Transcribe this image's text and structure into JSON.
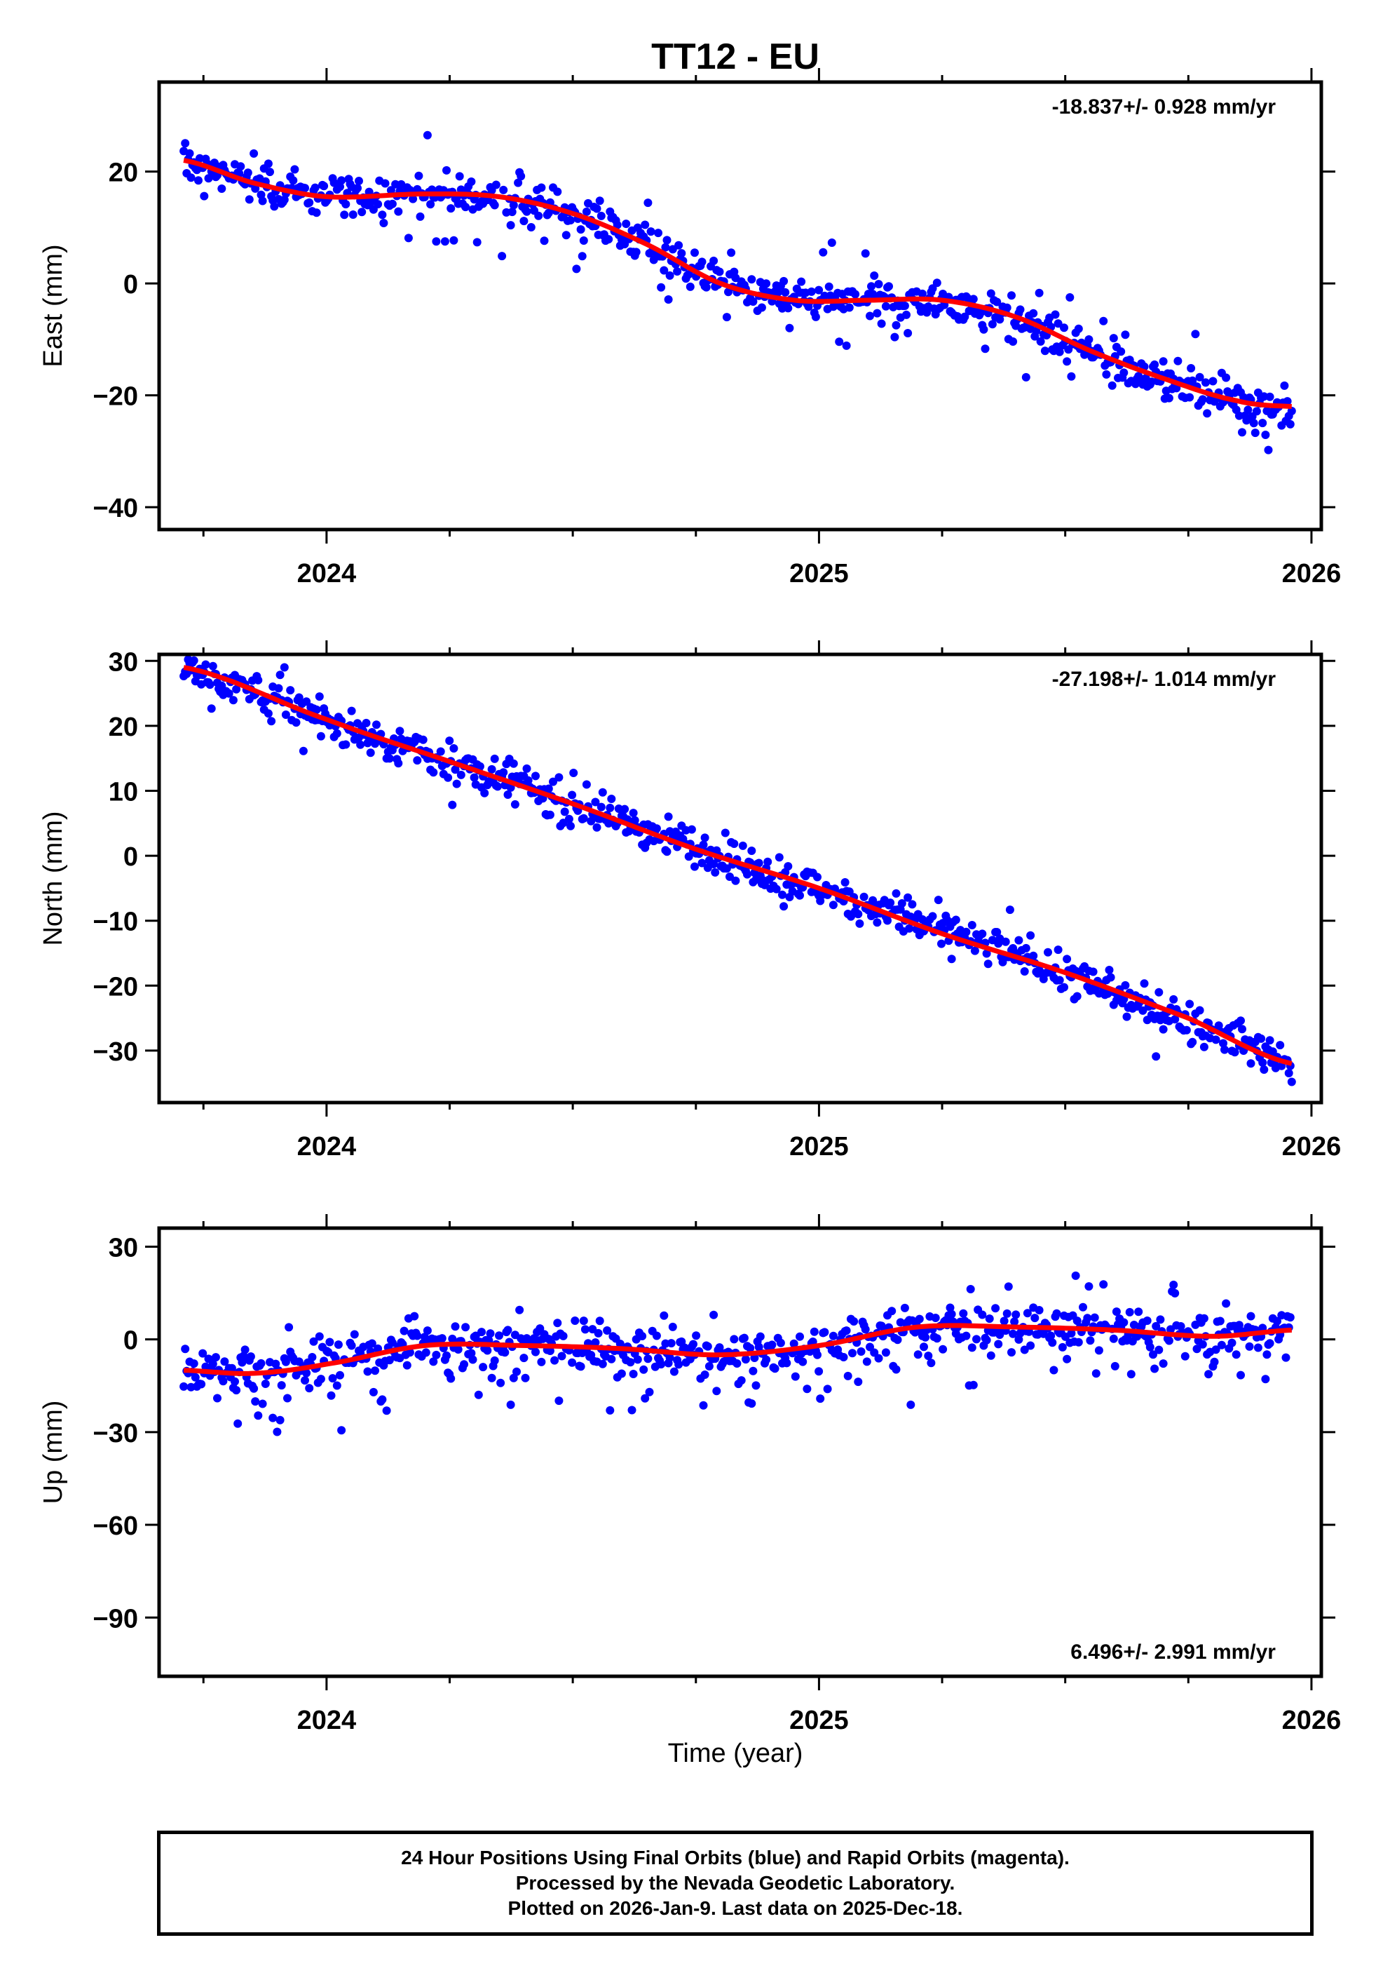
{
  "title": "TT12 - EU",
  "colors": {
    "points": "#0000ff",
    "fit": "#ff0000",
    "frame": "#000000"
  },
  "x_axis": {
    "label": "Time (year)",
    "ticks": [
      2024,
      2025,
      2026
    ],
    "range": [
      2023.66,
      2026.02
    ]
  },
  "caption": {
    "line1": "24 Hour Positions Using Final Orbits (blue) and Rapid Orbits (magenta).",
    "line2": "Processed by the Nevada Geodetic Laboratory.",
    "line3": "Plotted on 2026-Jan-9. Last data on 2025-Dec-18."
  },
  "chart_data": [
    {
      "type": "scatter",
      "title": "",
      "ylabel": "East (mm)",
      "ylim": [
        -44,
        36
      ],
      "yticks": [
        20,
        0,
        -20,
        -40
      ],
      "ytick_labels": [
        "20",
        "0",
        "−20",
        "−40"
      ],
      "velocity_label": "-18.837+/- 0.928 mm/yr",
      "series": [
        {
          "name": "daily positions",
          "x_range": [
            2023.71,
            2025.96
          ],
          "trend_knots": {
            "x": [
              2023.71,
              2023.85,
              2024.0,
              2024.2,
              2024.35,
              2024.5,
              2024.65,
              2024.8,
              2024.95,
              2025.1,
              2025.25,
              2025.4,
              2025.55,
              2025.7,
              2025.85,
              2025.96
            ],
            "y": [
              22,
              18,
              15.5,
              16,
              15.5,
              12.5,
              7,
              0,
              -3,
              -3,
              -3,
              -6,
              -12,
              -17,
              -21,
              -22
            ]
          }
        },
        {
          "name": "fit",
          "x": [
            2023.71,
            2023.85,
            2024.0,
            2024.2,
            2024.35,
            2024.5,
            2024.65,
            2024.8,
            2024.95,
            2025.1,
            2025.25,
            2025.4,
            2025.55,
            2025.7,
            2025.85,
            2025.96
          ],
          "y": [
            22,
            18,
            15.5,
            16,
            15.5,
            12.5,
            7,
            0,
            -3,
            -3,
            -3,
            -6,
            -12,
            -17,
            -21,
            -22
          ]
        }
      ]
    },
    {
      "type": "scatter",
      "title": "",
      "ylabel": "North (mm)",
      "ylim": [
        -38,
        31
      ],
      "yticks": [
        30,
        20,
        10,
        0,
        -10,
        -20,
        -30
      ],
      "ytick_labels": [
        "30",
        "20",
        "10",
        "0",
        "−10",
        "−20",
        "−30"
      ],
      "velocity_label": "-27.198+/- 1.014 mm/yr",
      "series": [
        {
          "name": "daily positions",
          "x_range": [
            2023.71,
            2025.96
          ],
          "trend_knots": {
            "x": [
              2023.71,
              2024.0,
              2024.5,
              2025.0,
              2025.5,
              2025.96
            ],
            "y": [
              29,
              21,
              8,
              -5,
              -18,
              -32
            ]
          }
        },
        {
          "name": "fit",
          "x": [
            2023.71,
            2024.0,
            2024.25,
            2024.5,
            2024.75,
            2025.0,
            2025.25,
            2025.5,
            2025.75,
            2025.96
          ],
          "y": [
            29,
            21,
            14.5,
            8,
            1,
            -5,
            -12,
            -18,
            -25,
            -32
          ]
        }
      ]
    },
    {
      "type": "scatter",
      "title": "",
      "ylabel": "Up (mm)",
      "ylim": [
        -109,
        36
      ],
      "yticks": [
        30,
        0,
        -30,
        -60,
        -90
      ],
      "ytick_labels": [
        "30",
        "0",
        "−30",
        "−60",
        "−90"
      ],
      "velocity_label": "6.496+/- 2.991 mm/yr",
      "series": [
        {
          "name": "daily positions",
          "x_range": [
            2023.71,
            2025.96
          ],
          "trend_knots": {
            "x": [
              2023.71,
              2023.85,
              2024.0,
              2024.2,
              2024.4,
              2024.6,
              2024.8,
              2025.0,
              2025.2,
              2025.4,
              2025.6,
              2025.8,
              2025.96
            ],
            "y": [
              -10,
              -11,
              -8,
              -2,
              -2,
              -3,
              -5,
              -2,
              4,
              4,
              3,
              1,
              3
            ]
          }
        },
        {
          "name": "fit",
          "x": [
            2023.71,
            2023.85,
            2024.0,
            2024.2,
            2024.4,
            2024.6,
            2024.8,
            2025.0,
            2025.2,
            2025.4,
            2025.6,
            2025.8,
            2025.96
          ],
          "y": [
            -10,
            -11,
            -8,
            -2,
            -2,
            -3,
            -5,
            -2,
            4,
            4,
            3,
            1,
            3
          ]
        }
      ]
    }
  ]
}
